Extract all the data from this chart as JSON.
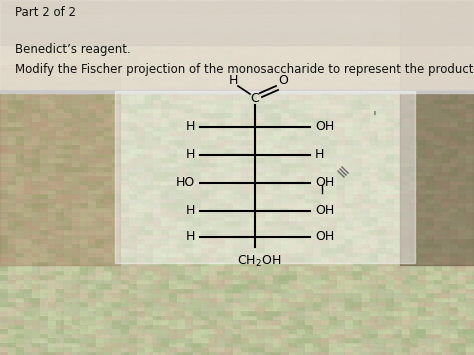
{
  "title_text": "Part 2 of 2",
  "line1": "Benedict’s reagent.",
  "line2": "Modify the Fischer projection of the monosaccharide to represent the product.",
  "text_color": "#111111",
  "overall_bg": "#b8a898",
  "header_bg": "#d8d0c4",
  "panel_bg_light": "#ccd4b8",
  "panel_border": "#888888",
  "left_labels": [
    "H",
    "H",
    "HO",
    "H",
    "H"
  ],
  "right_labels": [
    "OH",
    "H",
    "OH",
    "OH",
    "OH"
  ],
  "strikethrough_row": 2,
  "tick_mark": true
}
